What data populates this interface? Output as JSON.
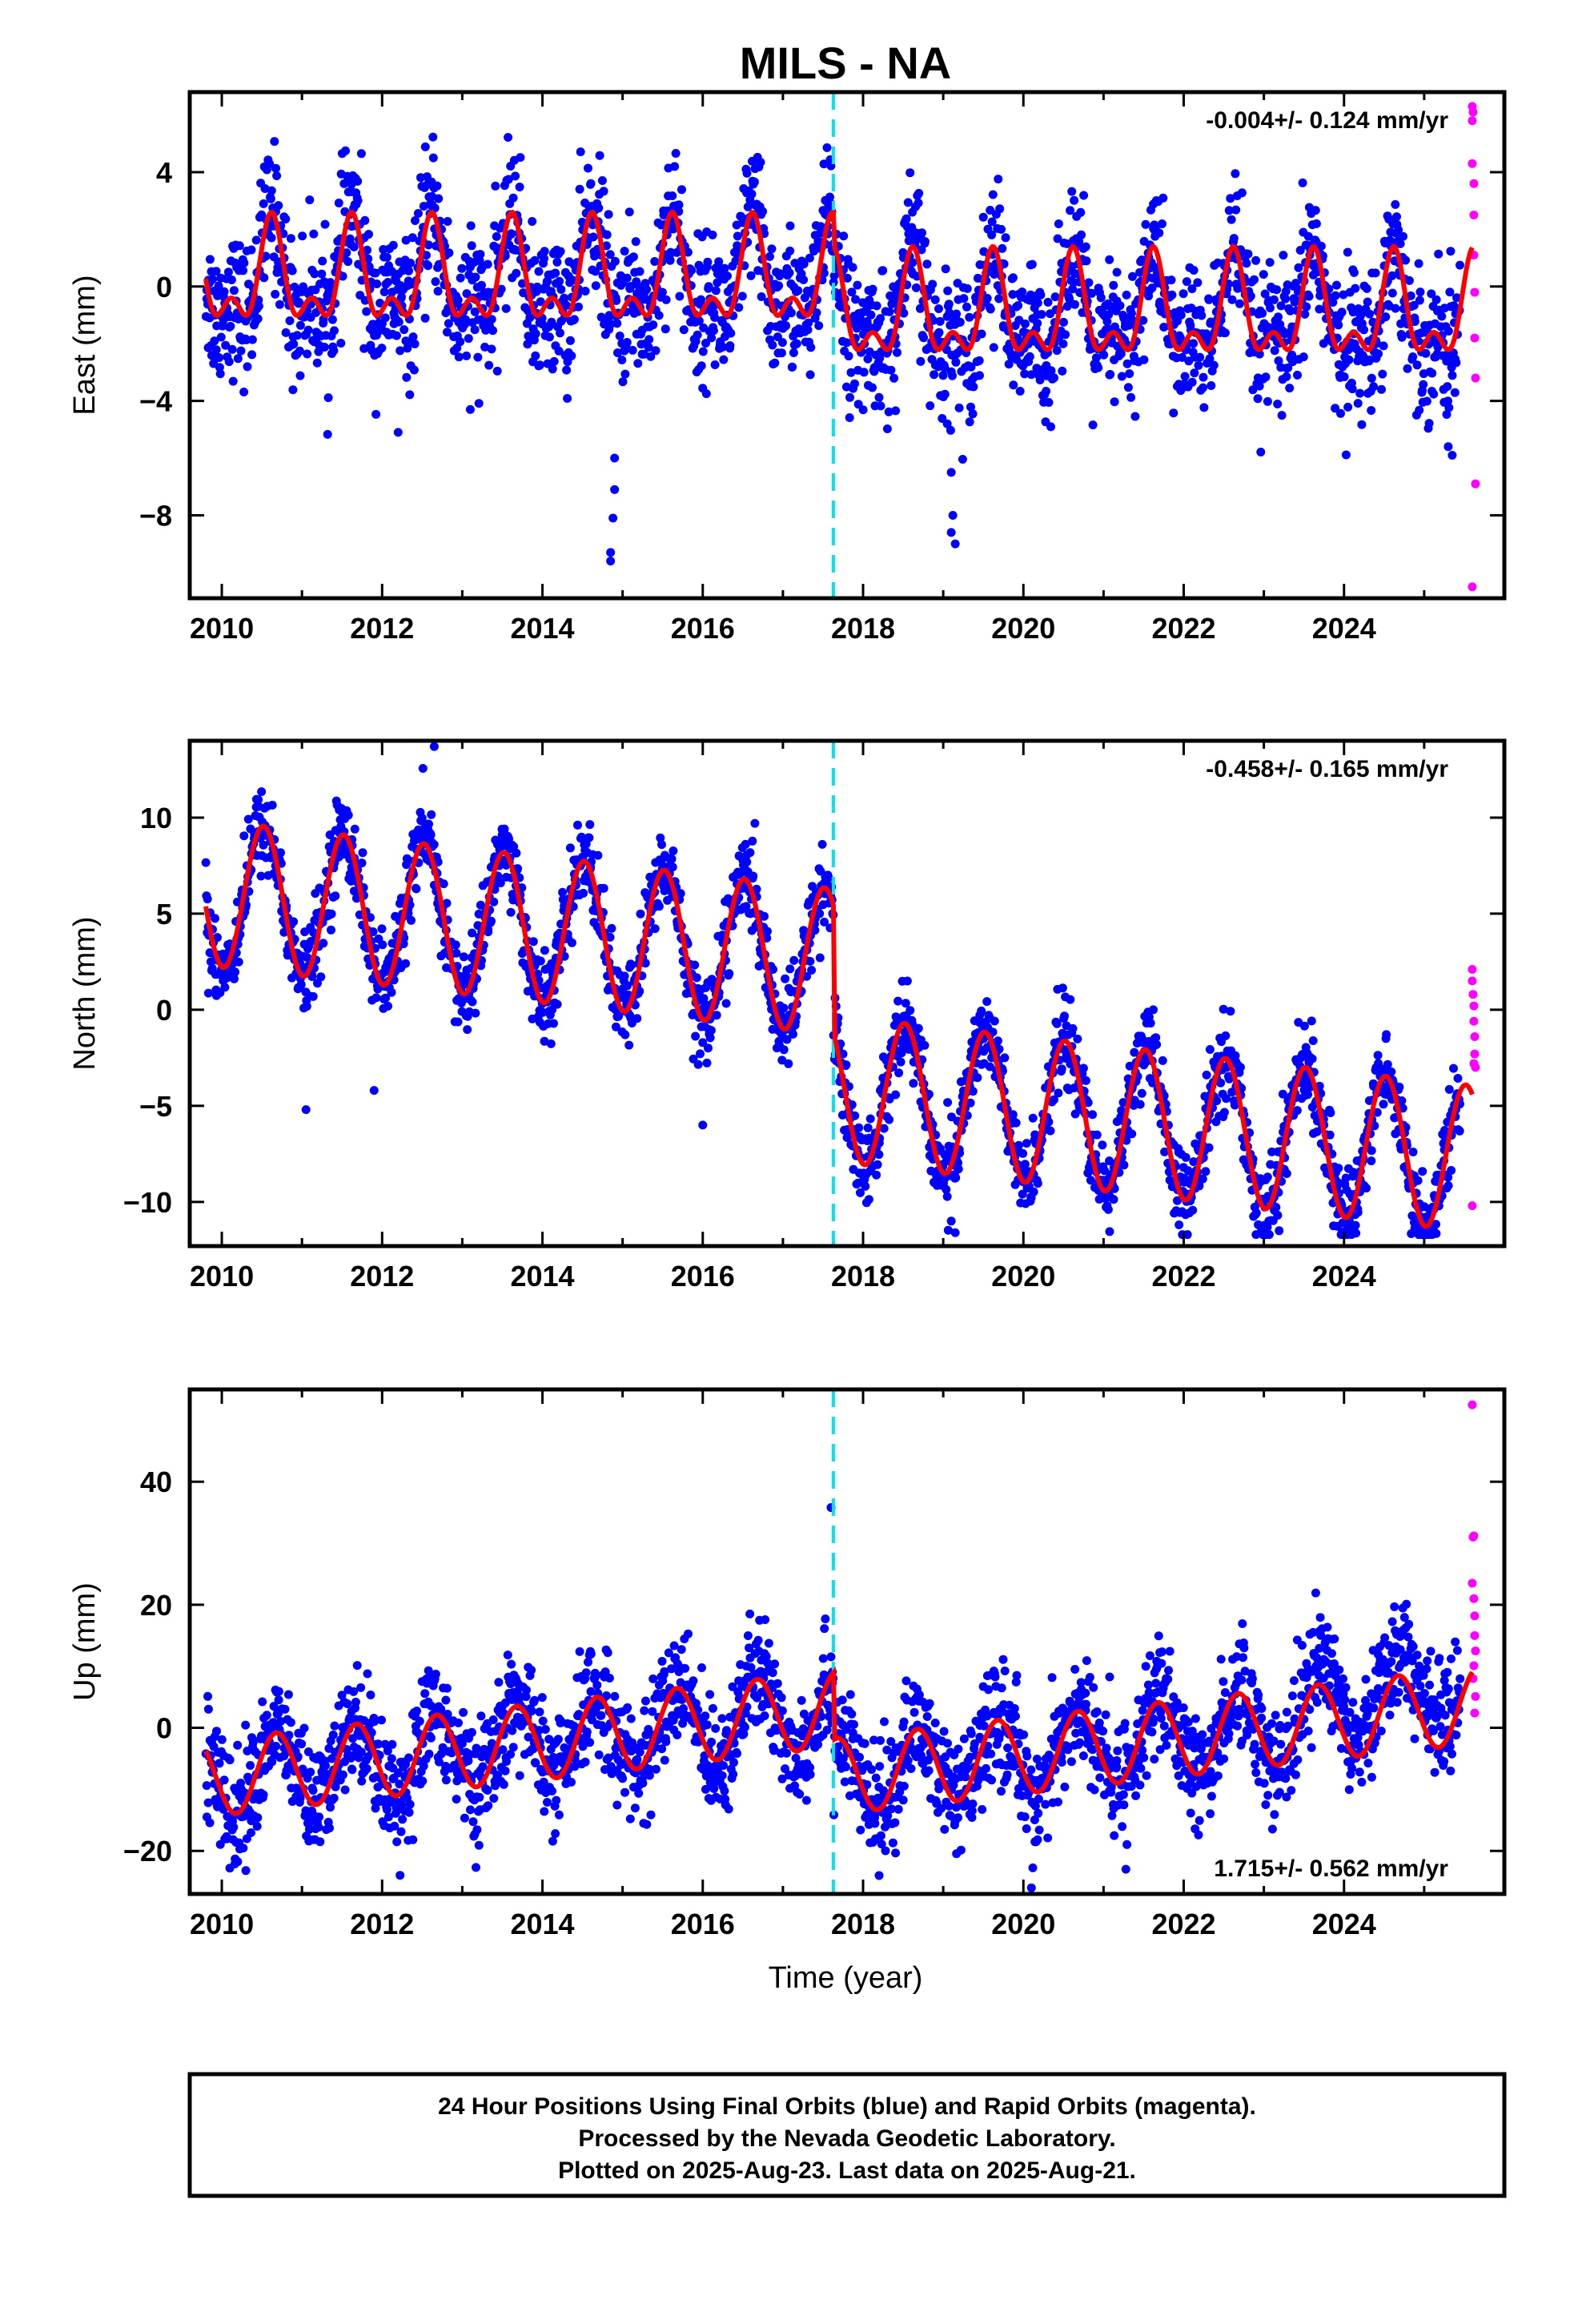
{
  "title": "MILS - NA",
  "colors": {
    "final": "#0000ff",
    "rapid": "#ff00ff",
    "model": "#ff0000",
    "event": "#00e5ee",
    "frame": "#000000"
  },
  "chart_data": [
    {
      "type": "scatter",
      "component": "east",
      "ylabel": "East (mm)",
      "xlabel": "",
      "xlim": [
        2009.6,
        2026.0
      ],
      "ylim": [
        -10.9,
        6.8
      ],
      "x_ticks": [
        2010,
        2012,
        2014,
        2016,
        2018,
        2020,
        2022,
        2024
      ],
      "y_ticks": [
        4,
        0,
        -4,
        -8
      ],
      "y_tick_labels": [
        "4",
        "0",
        "−4",
        "−8"
      ],
      "rate_text": "-0.004+/- 0.124 mm/yr",
      "rate_position": "top-right",
      "event_line_x": 2017.63,
      "series": [
        {
          "name": "Final Orbits",
          "color": "blue",
          "kind": "points",
          "x_range": [
            2009.8,
            2025.45
          ],
          "trend_mm_per_yr": 0.0,
          "annual_amplitude": 1.5,
          "scatter_sigma": 1.2,
          "offset_at_2017_6": -1.2
        },
        {
          "name": "Rapid Orbits",
          "color": "magenta",
          "kind": "points",
          "x": [
            2025.6,
            2025.6,
            2025.6,
            2025.62,
            2025.62,
            2025.62,
            2025.63,
            2025.63,
            2025.64,
            2025.64,
            2025.6,
            2025.61
          ],
          "y": [
            6.3,
            5.8,
            4.3,
            3.6,
            2.5,
            1.1,
            -0.2,
            -1.8,
            -3.2,
            -6.9,
            -10.5,
            6.1
          ]
        },
        {
          "name": "Model",
          "color": "red",
          "kind": "line",
          "x_range": [
            2009.8,
            2025.6
          ]
        }
      ],
      "outliers": {
        "x": [
          2014.85,
          2014.85,
          2014.88,
          2014.9,
          2014.9,
          2019.05,
          2019.1,
          2019.12,
          2019.1,
          2019.15,
          2025.3,
          2025.35,
          2012.2,
          2013.1
        ],
        "y": [
          -9.6,
          -9.3,
          -8.1,
          -7.1,
          -6.0,
          -4.8,
          -6.5,
          -8.0,
          -8.6,
          -9.0,
          -5.6,
          -5.9,
          -5.1,
          -4.3
        ]
      }
    },
    {
      "type": "scatter",
      "component": "north",
      "ylabel": "North (mm)",
      "xlabel": "",
      "xlim": [
        2009.6,
        2026.0
      ],
      "ylim": [
        -12.3,
        14.0
      ],
      "x_ticks": [
        2010,
        2012,
        2014,
        2016,
        2018,
        2020,
        2022,
        2024
      ],
      "y_ticks": [
        10,
        5,
        0,
        -5,
        -10
      ],
      "y_tick_labels": [
        "10",
        "5",
        "0",
        "−5",
        "−10"
      ],
      "rate_text": "-0.458+/- 0.165 mm/yr",
      "rate_position": "top-right",
      "event_line_x": 2017.63,
      "series": [
        {
          "name": "Final Orbits",
          "color": "blue",
          "kind": "points",
          "x_range": [
            2009.8,
            2025.45
          ],
          "trend_mm_per_yr": -0.458,
          "annual_amplitude": 3.8,
          "scatter_sigma": 1.1,
          "offset_at_2017_6": -6.5
        },
        {
          "name": "Rapid Orbits",
          "color": "magenta",
          "kind": "points",
          "x": [
            2025.6,
            2025.6,
            2025.61,
            2025.62,
            2025.62,
            2025.63,
            2025.63,
            2025.64,
            2025.6,
            2025.62
          ],
          "y": [
            2.1,
            1.5,
            0.8,
            0.2,
            -0.6,
            -1.4,
            -2.3,
            -3.0,
            -10.2,
            -2.8
          ]
        },
        {
          "name": "Model",
          "color": "red",
          "kind": "line",
          "x_range": [
            2009.8,
            2025.6
          ]
        }
      ],
      "outliers": {
        "x": [
          2012.65,
          2019.1,
          2019.15,
          2016.0,
          2011.05,
          2011.9
        ],
        "y": [
          13.7,
          -11.0,
          -11.6,
          -6.0,
          -5.2,
          -4.2
        ]
      }
    },
    {
      "type": "scatter",
      "component": "up",
      "ylabel": "Up (mm)",
      "xlabel": "Time (year)",
      "xlim": [
        2009.6,
        2026.0
      ],
      "ylim": [
        -27.0,
        55.0
      ],
      "x_ticks": [
        2010,
        2012,
        2014,
        2016,
        2018,
        2020,
        2022,
        2024
      ],
      "y_ticks": [
        40,
        20,
        0,
        -20
      ],
      "y_tick_labels": [
        "40",
        "20",
        "0",
        "−20"
      ],
      "rate_text": "1.715+/- 0.562 mm/yr",
      "rate_position": "bottom-right",
      "event_line_x": 2017.63,
      "series": [
        {
          "name": "Final Orbits",
          "color": "blue",
          "kind": "points",
          "x_range": [
            2009.8,
            2025.45
          ],
          "trend_mm_per_yr": 1.715,
          "annual_amplitude": 6.5,
          "scatter_sigma": 4.5,
          "offset_at_2017_6": -10.0
        },
        {
          "name": "Rapid Orbits",
          "color": "magenta",
          "kind": "points",
          "x": [
            2025.6,
            2025.61,
            2025.62,
            2025.6,
            2025.62,
            2025.63,
            2025.63,
            2025.64,
            2025.62,
            2025.61,
            2025.64,
            2025.63
          ],
          "y": [
            52.5,
            31.0,
            31.2,
            23.5,
            21.0,
            18.2,
            15.0,
            12.5,
            10.1,
            8.0,
            5.1,
            2.4
          ]
        },
        {
          "name": "Model",
          "color": "red",
          "kind": "line",
          "x_range": [
            2009.8,
            2025.6
          ]
        }
      ],
      "outliers": {
        "x": [
          2017.6,
          2020.1,
          2018.2,
          2010.1,
          2010.3
        ],
        "y": [
          35.8,
          -26.0,
          -24.0,
          -22.8,
          -23.2
        ]
      }
    }
  ],
  "footer": {
    "line1": "24 Hour Positions Using Final Orbits (blue) and Rapid Orbits (magenta).",
    "line2": "Processed by the Nevada Geodetic Laboratory.",
    "line3": "Plotted on 2025-Aug-23. Last data on 2025-Aug-21."
  }
}
